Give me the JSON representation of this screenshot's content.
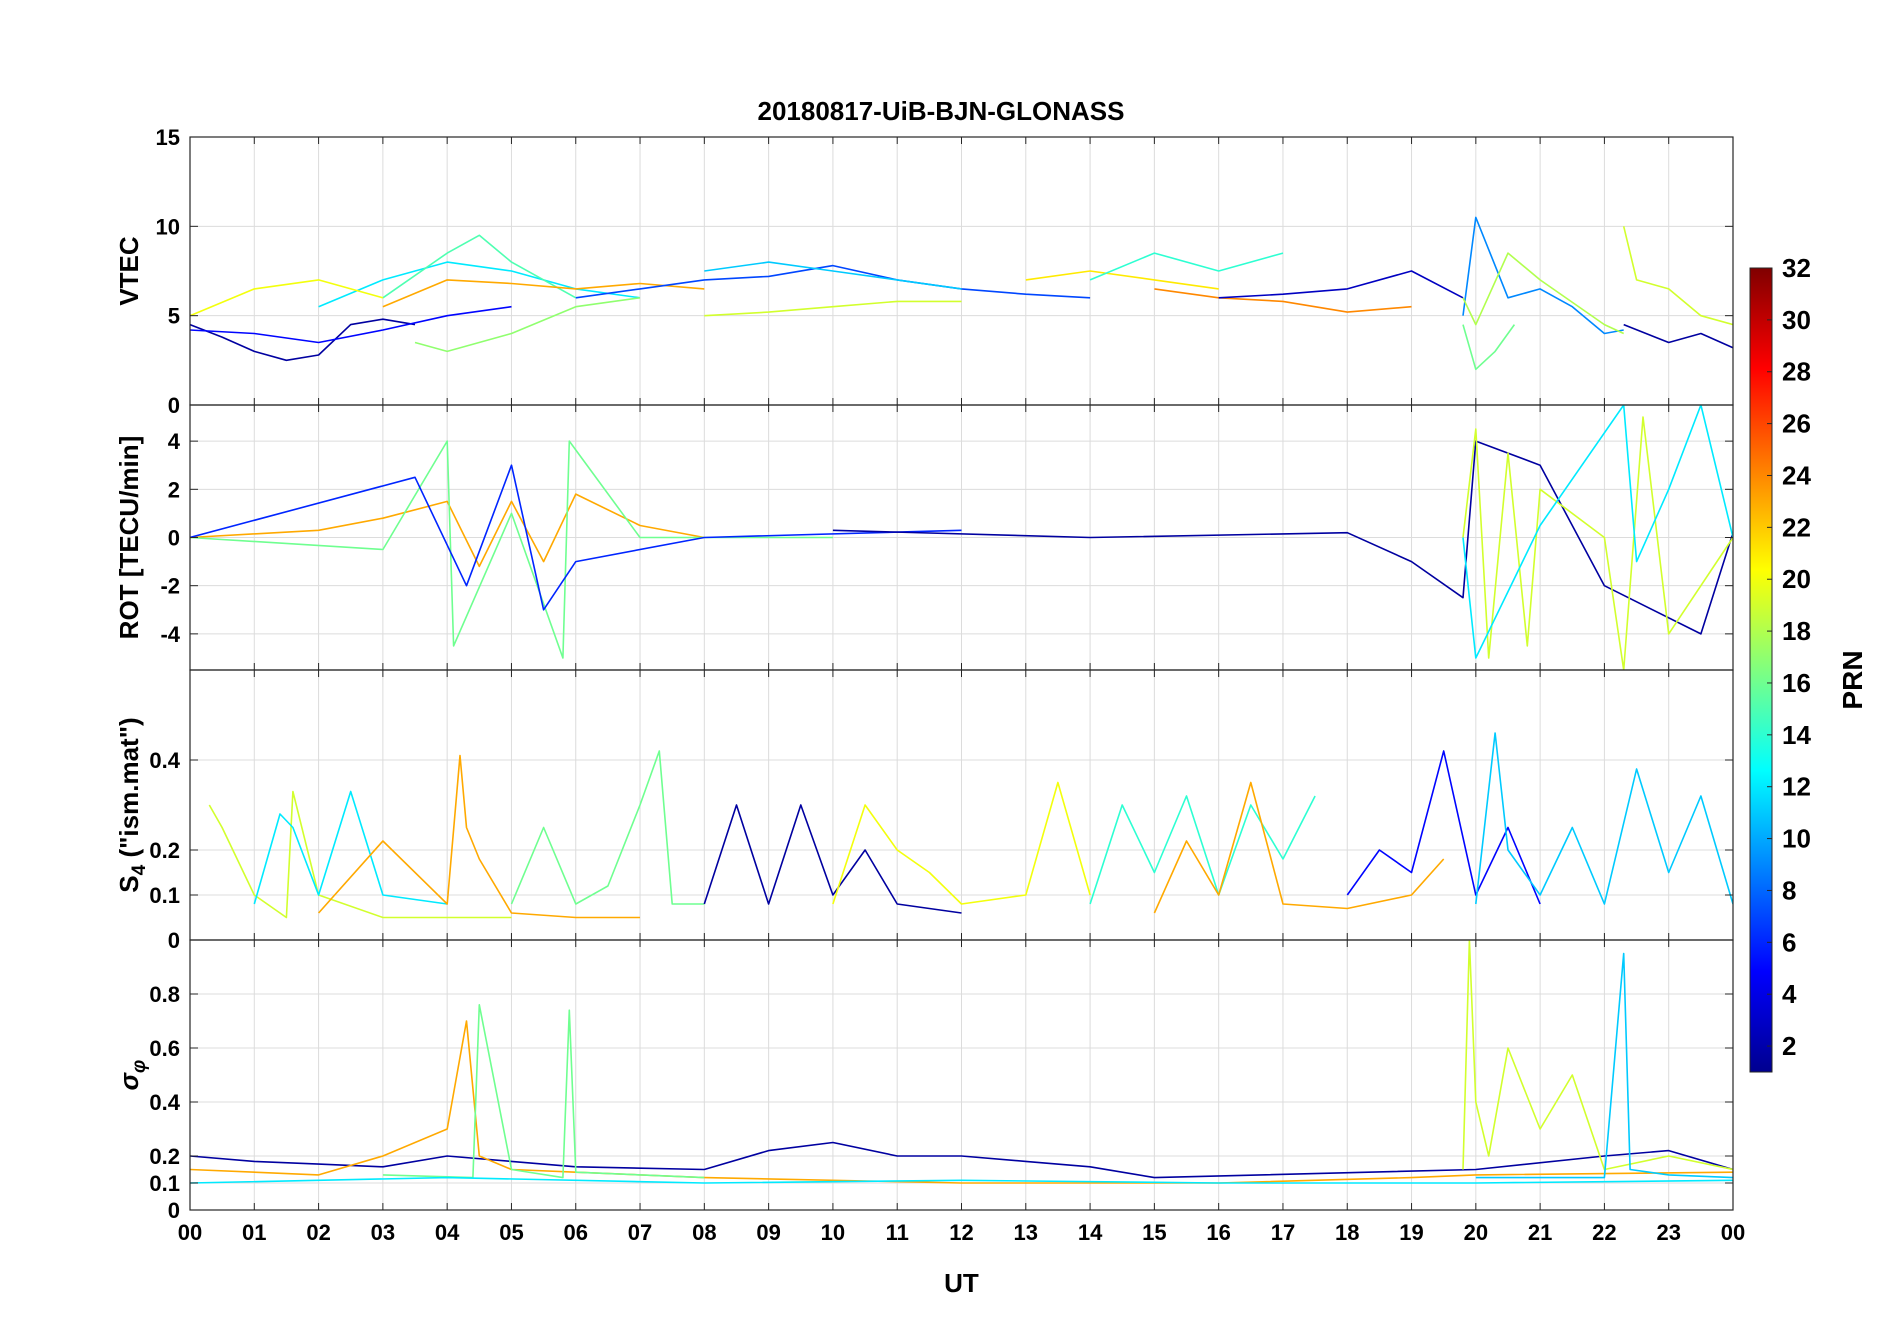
{
  "title": "20180817-UiB-BJN-GLONASS",
  "chart_data": [
    {
      "type": "line",
      "title": "20180817-UiB-BJN-GLONASS",
      "panel": "vtec",
      "ylabel": "VTEC",
      "xlabel": "",
      "xlim": [
        0,
        24
      ],
      "ylim": [
        0,
        15
      ],
      "yticks": [
        0,
        5,
        10,
        15
      ],
      "grid": true,
      "series": [
        {
          "prn": 2,
          "x": [
            0,
            0.5,
            1,
            1.5,
            2,
            2.5,
            3,
            3.5
          ],
          "y": [
            4.5,
            3.8,
            3.0,
            2.5,
            2.8,
            4.5,
            4.8,
            4.5
          ]
        },
        {
          "prn": 5,
          "x": [
            0,
            1,
            2,
            3,
            4,
            5
          ],
          "y": [
            4.2,
            4.0,
            3.5,
            4.2,
            5.0,
            5.5
          ]
        },
        {
          "prn": 12,
          "x": [
            2,
            3,
            4,
            5,
            6,
            7
          ],
          "y": [
            5.5,
            7.0,
            8.0,
            7.5,
            6.5,
            6.0
          ]
        },
        {
          "prn": 15,
          "x": [
            3,
            4,
            4.5,
            5,
            6
          ],
          "y": [
            6.0,
            8.5,
            9.5,
            8.0,
            6.0
          ]
        },
        {
          "prn": 17,
          "x": [
            3.5,
            4,
            5,
            6,
            7
          ],
          "y": [
            3.5,
            3.0,
            4.0,
            5.5,
            6.0
          ]
        },
        {
          "prn": 20,
          "x": [
            0,
            1,
            2,
            3
          ],
          "y": [
            5.0,
            6.5,
            7.0,
            6.0
          ]
        },
        {
          "prn": 23,
          "x": [
            3,
            4,
            5,
            6,
            7,
            8
          ],
          "y": [
            5.5,
            7.0,
            6.8,
            6.5,
            6.8,
            6.5
          ]
        },
        {
          "prn": 7,
          "x": [
            6,
            7,
            8,
            9,
            10,
            11,
            12,
            13,
            14
          ],
          "y": [
            6.0,
            6.5,
            7.0,
            7.2,
            7.8,
            7.0,
            6.5,
            6.2,
            6.0
          ]
        },
        {
          "prn": 11,
          "x": [
            8,
            9,
            10,
            11,
            12
          ],
          "y": [
            7.5,
            8.0,
            7.5,
            7.0,
            6.5
          ]
        },
        {
          "prn": 19,
          "x": [
            8,
            9,
            10,
            11,
            12
          ],
          "y": [
            5.0,
            5.2,
            5.5,
            5.8,
            5.8
          ]
        },
        {
          "prn": 21,
          "x": [
            13,
            14,
            15,
            16
          ],
          "y": [
            7.0,
            7.5,
            7.0,
            6.5
          ]
        },
        {
          "prn": 14,
          "x": [
            14,
            15,
            16,
            17
          ],
          "y": [
            7.0,
            8.5,
            7.5,
            8.5
          ]
        },
        {
          "prn": 24,
          "x": [
            15,
            16,
            17,
            18,
            19
          ],
          "y": [
            6.5,
            6.0,
            5.8,
            5.2,
            5.5
          ]
        },
        {
          "prn": 3,
          "x": [
            16,
            17,
            18,
            19,
            19.8
          ],
          "y": [
            6.0,
            6.2,
            6.5,
            7.5,
            6.0
          ]
        },
        {
          "prn": 9,
          "x": [
            19.8,
            20,
            20.5,
            21,
            21.5,
            22,
            22.3
          ],
          "y": [
            5.0,
            10.5,
            6.0,
            6.5,
            5.5,
            4.0,
            4.2
          ]
        },
        {
          "prn": 18,
          "x": [
            19.8,
            20,
            20.5,
            21,
            22,
            22.3
          ],
          "y": [
            6.0,
            4.5,
            8.5,
            7.0,
            4.5,
            4.0
          ]
        },
        {
          "prn": 16,
          "x": [
            19.8,
            20,
            20.3,
            20.6
          ],
          "y": [
            4.5,
            2.0,
            3.0,
            4.5
          ]
        },
        {
          "prn": 19,
          "x": [
            22.3,
            22.5,
            23,
            23.5,
            24
          ],
          "y": [
            10.0,
            7.0,
            6.5,
            5.0,
            4.5
          ]
        },
        {
          "prn": 2,
          "x": [
            22.3,
            23,
            23.5,
            24
          ],
          "y": [
            4.5,
            3.5,
            4.0,
            3.2
          ]
        }
      ]
    },
    {
      "type": "line",
      "panel": "rot",
      "ylabel": "ROT [TECU/min]",
      "xlabel": "",
      "xlim": [
        0,
        24
      ],
      "ylim": [
        -5.5,
        5.5
      ],
      "yticks": [
        -4,
        -2,
        0,
        2,
        4
      ],
      "grid": true,
      "series": [
        {
          "prn": 23,
          "x": [
            0,
            2,
            3,
            4,
            4.5,
            5,
            5.5,
            6,
            7,
            8
          ],
          "y": [
            0,
            0.3,
            0.8,
            1.5,
            -1.2,
            1.5,
            -1.0,
            1.8,
            0.5,
            0
          ]
        },
        {
          "prn": 16,
          "x": [
            0,
            3,
            4,
            4.1,
            5,
            5.8,
            5.9,
            7,
            10
          ],
          "y": [
            0,
            -0.5,
            4.0,
            -4.5,
            1.0,
            -5.0,
            4.0,
            0,
            0
          ]
        },
        {
          "prn": 6,
          "x": [
            0,
            3.5,
            4.3,
            5,
            5.5,
            6,
            8,
            12
          ],
          "y": [
            0,
            2.5,
            -2.0,
            3.0,
            -3.0,
            -1.0,
            0,
            0.3
          ]
        },
        {
          "prn": 2,
          "x": [
            10,
            14,
            18,
            19,
            19.8,
            20,
            21,
            22,
            23.5,
            24
          ],
          "y": [
            0.3,
            0,
            0.2,
            -1.0,
            -2.5,
            4.0,
            3.0,
            -2.0,
            -4.0,
            0.2
          ]
        },
        {
          "prn": 19,
          "x": [
            19.8,
            20,
            20.2,
            20.5,
            20.8,
            21,
            22,
            22.3,
            22.6,
            23,
            24
          ],
          "y": [
            0,
            4.5,
            -5.0,
            3.5,
            -4.5,
            2.0,
            0,
            -5.5,
            5.0,
            -4.0,
            0
          ]
        },
        {
          "prn": 12,
          "x": [
            19.8,
            20,
            21,
            22.3,
            22.5,
            23,
            23.5,
            24
          ],
          "y": [
            0,
            -5.0,
            0.5,
            5.5,
            -1.0,
            2.0,
            5.5,
            0
          ]
        }
      ]
    },
    {
      "type": "line",
      "panel": "s4",
      "ylabel": "S4 (\"ism.mat\")",
      "xlabel": "",
      "xlim": [
        0,
        24
      ],
      "ylim": [
        0,
        0.6
      ],
      "yticks": [
        0,
        0.1,
        0.2,
        0.4
      ],
      "grid": true,
      "series": [
        {
          "prn": 19,
          "x": [
            0.3,
            0.5,
            1,
            1.5,
            1.6,
            2,
            3,
            5
          ],
          "y": [
            0.3,
            0.25,
            0.1,
            0.05,
            0.33,
            0.1,
            0.05,
            0.05
          ]
        },
        {
          "prn": 12,
          "x": [
            1,
            1.4,
            1.6,
            2,
            2.5,
            3,
            4
          ],
          "y": [
            0.08,
            0.28,
            0.25,
            0.1,
            0.33,
            0.1,
            0.08
          ]
        },
        {
          "prn": 23,
          "x": [
            2,
            3,
            4,
            4.2,
            4.3,
            4.5,
            5,
            6,
            7
          ],
          "y": [
            0.06,
            0.22,
            0.08,
            0.41,
            0.25,
            0.18,
            0.06,
            0.05,
            0.05
          ]
        },
        {
          "prn": 16,
          "x": [
            5,
            5.5,
            6,
            6.5,
            7,
            7.3,
            7.5,
            8
          ],
          "y": [
            0.08,
            0.25,
            0.08,
            0.12,
            0.3,
            0.42,
            0.08,
            0.08
          ]
        },
        {
          "prn": 2,
          "x": [
            8,
            8.5,
            9,
            9.5,
            10,
            10.5,
            11,
            12
          ],
          "y": [
            0.08,
            0.3,
            0.08,
            0.3,
            0.1,
            0.2,
            0.08,
            0.06
          ]
        },
        {
          "prn": 20,
          "x": [
            10,
            10.5,
            11,
            11.5,
            12,
            13,
            13.5,
            14
          ],
          "y": [
            0.08,
            0.3,
            0.2,
            0.15,
            0.08,
            0.1,
            0.35,
            0.1
          ]
        },
        {
          "prn": 14,
          "x": [
            14,
            14.5,
            15,
            15.5,
            16,
            16.5,
            17,
            17.5
          ],
          "y": [
            0.08,
            0.3,
            0.15,
            0.32,
            0.1,
            0.3,
            0.18,
            0.32
          ]
        },
        {
          "prn": 23,
          "x": [
            15,
            15.5,
            16,
            16.5,
            17,
            18,
            19,
            19.5
          ],
          "y": [
            0.06,
            0.22,
            0.1,
            0.35,
            0.08,
            0.07,
            0.1,
            0.18
          ]
        },
        {
          "prn": 5,
          "x": [
            18,
            18.5,
            19,
            19.5,
            20,
            20.5,
            21
          ],
          "y": [
            0.1,
            0.2,
            0.15,
            0.42,
            0.1,
            0.25,
            0.08
          ]
        },
        {
          "prn": 11,
          "x": [
            20,
            20.3,
            20.5,
            21,
            21.5,
            22,
            22.5,
            23,
            23.5,
            24
          ],
          "y": [
            0.08,
            0.46,
            0.2,
            0.1,
            0.25,
            0.08,
            0.38,
            0.15,
            0.32,
            0.08
          ]
        }
      ]
    },
    {
      "type": "line",
      "panel": "sigma-phi",
      "ylabel": "σφ",
      "xlabel": "UT",
      "xlim": [
        0,
        24
      ],
      "ylim": [
        0,
        1
      ],
      "yticks": [
        0,
        0.1,
        0.2,
        0.4,
        0.6,
        0.8
      ],
      "xticks": [
        "00",
        "01",
        "02",
        "03",
        "04",
        "05",
        "06",
        "07",
        "08",
        "09",
        "10",
        "11",
        "12",
        "13",
        "14",
        "15",
        "16",
        "17",
        "18",
        "19",
        "20",
        "21",
        "22",
        "23",
        "00"
      ],
      "grid": true,
      "series": [
        {
          "prn": 2,
          "x": [
            0,
            1,
            2,
            3,
            4,
            5,
            6,
            8,
            9,
            10,
            11,
            12,
            13,
            14,
            15,
            20,
            22,
            23,
            24
          ],
          "y": [
            0.2,
            0.18,
            0.17,
            0.16,
            0.2,
            0.18,
            0.16,
            0.15,
            0.22,
            0.25,
            0.2,
            0.2,
            0.18,
            0.16,
            0.12,
            0.15,
            0.2,
            0.22,
            0.15
          ]
        },
        {
          "prn": 23,
          "x": [
            0,
            2,
            3,
            4,
            4.3,
            4.5,
            5,
            6,
            8,
            12,
            16,
            19,
            20,
            24
          ],
          "y": [
            0.15,
            0.13,
            0.2,
            0.3,
            0.7,
            0.2,
            0.15,
            0.14,
            0.12,
            0.1,
            0.1,
            0.12,
            0.13,
            0.14
          ]
        },
        {
          "prn": 16,
          "x": [
            3,
            4.4,
            4.5,
            5,
            5.8,
            5.9,
            6,
            8
          ],
          "y": [
            0.13,
            0.12,
            0.76,
            0.15,
            0.12,
            0.74,
            0.14,
            0.12
          ]
        },
        {
          "prn": 19,
          "x": [
            19.8,
            19.9,
            20,
            20.2,
            20.5,
            21,
            21.5,
            22,
            23,
            24
          ],
          "y": [
            0.15,
            1.0,
            0.4,
            0.2,
            0.6,
            0.3,
            0.5,
            0.15,
            0.2,
            0.15
          ]
        },
        {
          "prn": 11,
          "x": [
            20,
            22,
            22.3,
            22.4,
            23,
            24
          ],
          "y": [
            0.12,
            0.12,
            0.95,
            0.15,
            0.13,
            0.12
          ]
        },
        {
          "prn": 12,
          "x": [
            0,
            4,
            8,
            12,
            16,
            20,
            24
          ],
          "y": [
            0.1,
            0.12,
            0.1,
            0.11,
            0.1,
            0.1,
            0.11
          ]
        }
      ]
    }
  ],
  "colorbar": {
    "label": "PRN",
    "min": 1,
    "max": 32,
    "ticks": [
      2,
      4,
      6,
      8,
      10,
      12,
      14,
      16,
      18,
      20,
      22,
      24,
      26,
      28,
      30,
      32
    ],
    "colormap": "jet"
  }
}
